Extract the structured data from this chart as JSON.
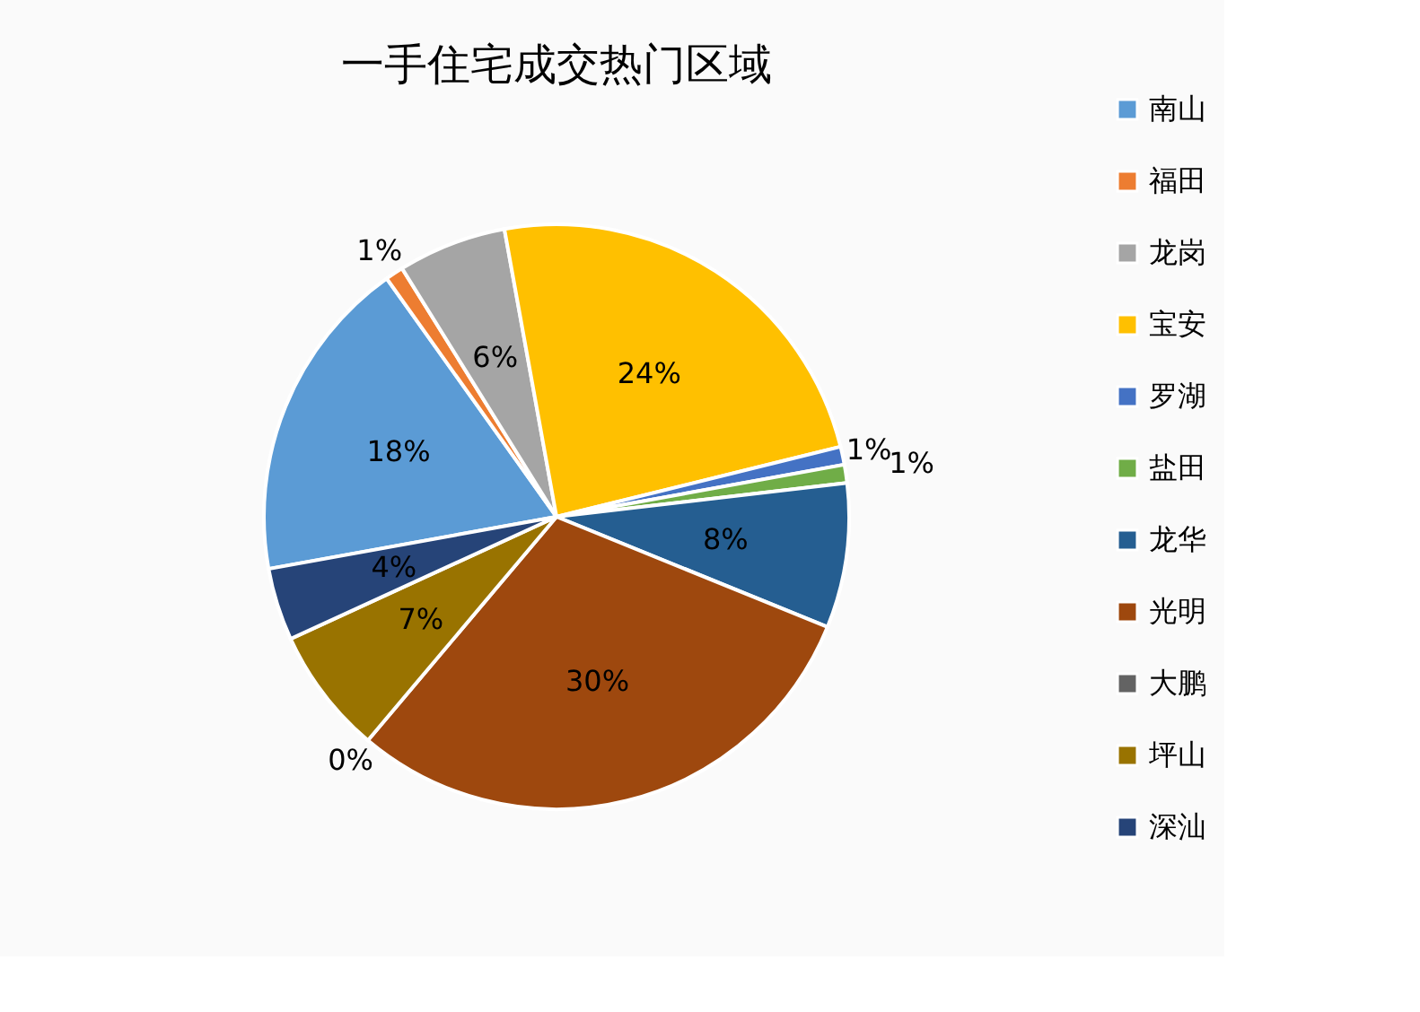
{
  "chart_data": {
    "type": "pie",
    "title": "一手住宅成交热门区域",
    "categories": [
      "南山",
      "福田",
      "龙岗",
      "宝安",
      "罗湖",
      "盐田",
      "龙华",
      "光明",
      "大鹏",
      "坪山",
      "深汕"
    ],
    "values": [
      18,
      1,
      6,
      24,
      1,
      1,
      8,
      30,
      0,
      7,
      4
    ],
    "value_labels": [
      "18%",
      "1%",
      "6%",
      "24%",
      "1%",
      "1%",
      "8%",
      "30%",
      "0%",
      "7%",
      "4%"
    ],
    "colors": [
      "#5b9bd5",
      "#ed7d31",
      "#a5a5a5",
      "#ffc000",
      "#4472c4",
      "#70ad47",
      "#255e91",
      "#9e480e",
      "#636363",
      "#997300",
      "#264478"
    ],
    "legend": "right"
  }
}
